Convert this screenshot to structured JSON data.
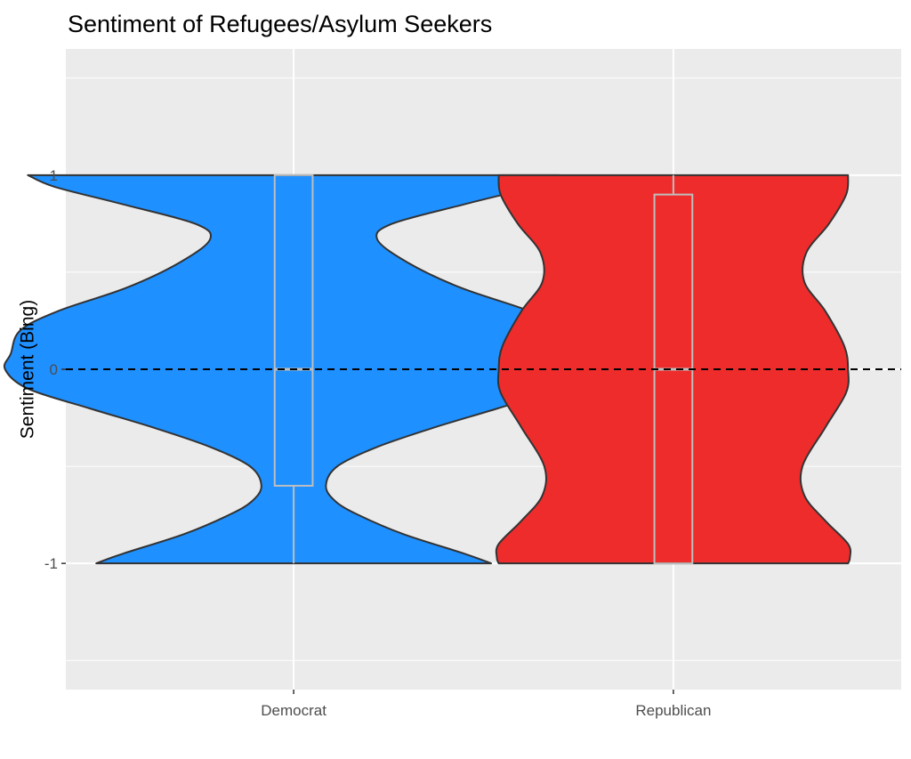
{
  "chart_data": {
    "type": "violin",
    "title": "Sentiment of Refugees/Asylum Seekers",
    "xlabel": "",
    "ylabel": "Sentiment (Bing)",
    "categories": [
      "Democrat",
      "Republican"
    ],
    "ylim": [
      -1.65,
      1.65
    ],
    "yticks": [
      -1,
      0,
      1
    ],
    "ytick_labels": [
      "-1",
      "0",
      "1"
    ],
    "grid": true,
    "reference_line": {
      "y": 0,
      "style": "dashed",
      "color": "#000000"
    },
    "series": [
      {
        "category": "Democrat",
        "fill": "#1E90FF",
        "boxplot": {
          "min": -1,
          "q1": -0.6,
          "median": 0,
          "q3": 1,
          "max": 1
        },
        "density": [
          {
            "y": -1.0,
            "w": 0.52
          },
          {
            "y": -0.95,
            "w": 0.45
          },
          {
            "y": -0.85,
            "w": 0.29
          },
          {
            "y": -0.75,
            "w": 0.17
          },
          {
            "y": -0.68,
            "w": 0.11
          },
          {
            "y": -0.6,
            "w": 0.085
          },
          {
            "y": -0.5,
            "w": 0.115
          },
          {
            "y": -0.4,
            "w": 0.22
          },
          {
            "y": -0.3,
            "w": 0.37
          },
          {
            "y": -0.2,
            "w": 0.54
          },
          {
            "y": -0.1,
            "w": 0.7
          },
          {
            "y": 0.0,
            "w": 0.76
          },
          {
            "y": 0.08,
            "w": 0.745
          },
          {
            "y": 0.2,
            "w": 0.72
          },
          {
            "y": 0.3,
            "w": 0.62
          },
          {
            "y": 0.42,
            "w": 0.44
          },
          {
            "y": 0.55,
            "w": 0.3
          },
          {
            "y": 0.67,
            "w": 0.22
          },
          {
            "y": 0.75,
            "w": 0.26
          },
          {
            "y": 0.85,
            "w": 0.45
          },
          {
            "y": 0.94,
            "w": 0.63
          },
          {
            "y": 1.0,
            "w": 0.7
          }
        ]
      },
      {
        "category": "Republican",
        "fill": "#EE2C2C",
        "boxplot": {
          "min": -1,
          "q1": -1,
          "median": 0,
          "q3": 0.9,
          "max": 1
        },
        "density": [
          {
            "y": -1.0,
            "w": 0.46
          },
          {
            "y": -0.97,
            "w": 0.465
          },
          {
            "y": -0.9,
            "w": 0.46
          },
          {
            "y": -0.78,
            "w": 0.4
          },
          {
            "y": -0.65,
            "w": 0.345
          },
          {
            "y": -0.5,
            "w": 0.34
          },
          {
            "y": -0.3,
            "w": 0.4
          },
          {
            "y": -0.12,
            "w": 0.455
          },
          {
            "y": 0.0,
            "w": 0.46
          },
          {
            "y": 0.12,
            "w": 0.45
          },
          {
            "y": 0.3,
            "w": 0.4
          },
          {
            "y": 0.45,
            "w": 0.345
          },
          {
            "y": 0.6,
            "w": 0.35
          },
          {
            "y": 0.75,
            "w": 0.41
          },
          {
            "y": 0.9,
            "w": 0.455
          },
          {
            "y": 1.0,
            "w": 0.46
          }
        ]
      }
    ]
  },
  "colors": {
    "panel_background": "#EBEBEB",
    "grid_major": "#FFFFFF",
    "grid_minor": "#F5F5F5",
    "outline": "#333333",
    "box": "#BEBEBE",
    "reference_line": "#000000"
  }
}
